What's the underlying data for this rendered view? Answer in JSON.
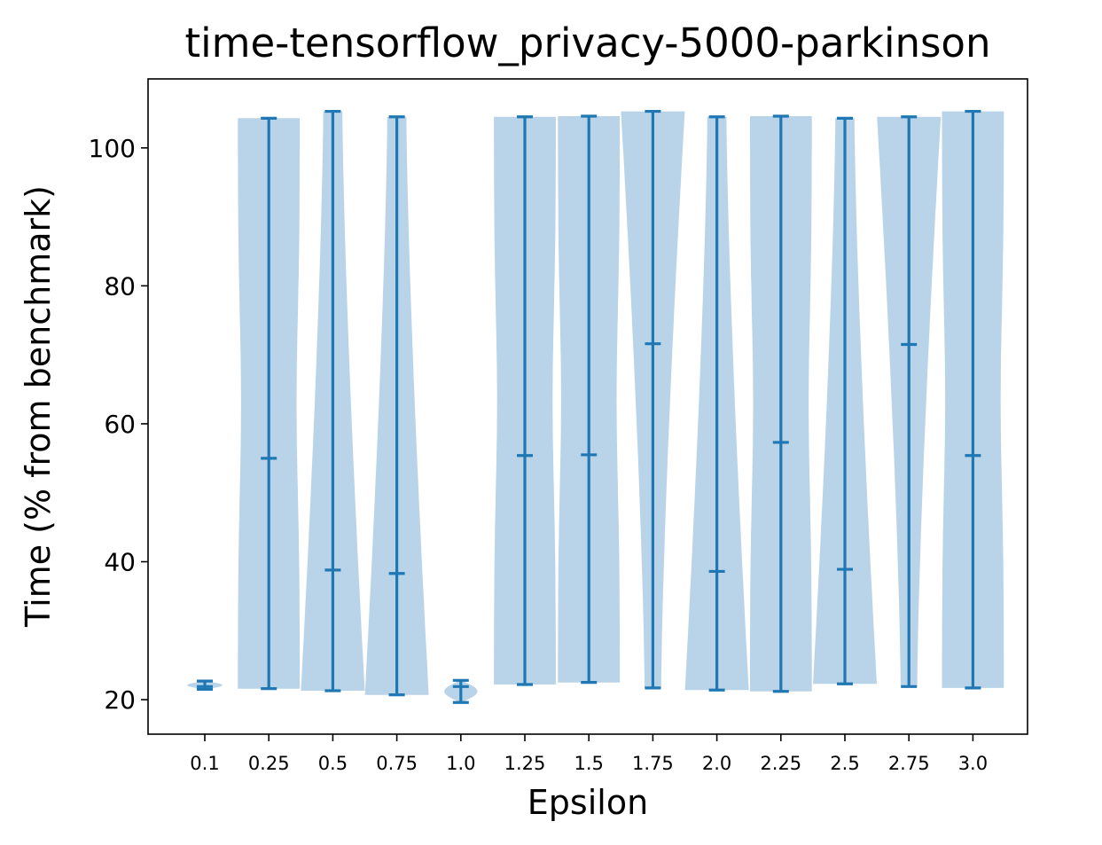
{
  "chart_data": {
    "type": "violin",
    "title": "time-tensorflow_privacy-5000-parkinson",
    "xlabel": "Epsilon",
    "ylabel": "Time (% from benchmark)",
    "ylim": [
      15,
      110
    ],
    "yticks": [
      20,
      40,
      60,
      80,
      100
    ],
    "grid": false,
    "categories": [
      "0.1",
      "0.25",
      "0.5",
      "0.75",
      "1.0",
      "1.25",
      "1.5",
      "1.75",
      "2.0",
      "2.25",
      "2.5",
      "2.75",
      "3.0"
    ],
    "violins": [
      {
        "category": "0.1",
        "min": 21.5,
        "max": 22.7,
        "mean": 21.9,
        "shape": "tiny"
      },
      {
        "category": "0.25",
        "min": 21.6,
        "max": 104.3,
        "mean": 55.0,
        "shape": "uniform"
      },
      {
        "category": "0.5",
        "min": 21.3,
        "max": 105.3,
        "mean": 38.8,
        "shape": "bottom"
      },
      {
        "category": "0.75",
        "min": 20.7,
        "max": 104.5,
        "mean": 38.3,
        "shape": "bottom"
      },
      {
        "category": "1.0",
        "min": 19.6,
        "max": 22.8,
        "mean": 21.9,
        "shape": "small"
      },
      {
        "category": "1.25",
        "min": 22.2,
        "max": 104.5,
        "mean": 55.4,
        "shape": "uniform"
      },
      {
        "category": "1.5",
        "min": 22.5,
        "max": 104.6,
        "mean": 55.5,
        "shape": "uniform"
      },
      {
        "category": "1.75",
        "min": 21.7,
        "max": 105.3,
        "mean": 71.6,
        "shape": "top"
      },
      {
        "category": "2.0",
        "min": 21.4,
        "max": 104.5,
        "mean": 38.6,
        "shape": "bottom"
      },
      {
        "category": "2.25",
        "min": 21.2,
        "max": 104.6,
        "mean": 57.3,
        "shape": "uniform"
      },
      {
        "category": "2.5",
        "min": 22.3,
        "max": 104.3,
        "mean": 38.9,
        "shape": "bottom"
      },
      {
        "category": "2.75",
        "min": 21.9,
        "max": 104.5,
        "mean": 71.5,
        "shape": "top"
      },
      {
        "category": "3.0",
        "min": 21.7,
        "max": 105.3,
        "mean": 55.4,
        "shape": "uniform"
      }
    ],
    "colors": {
      "body": "#b9d4e8",
      "line": "#1f77b4"
    }
  }
}
